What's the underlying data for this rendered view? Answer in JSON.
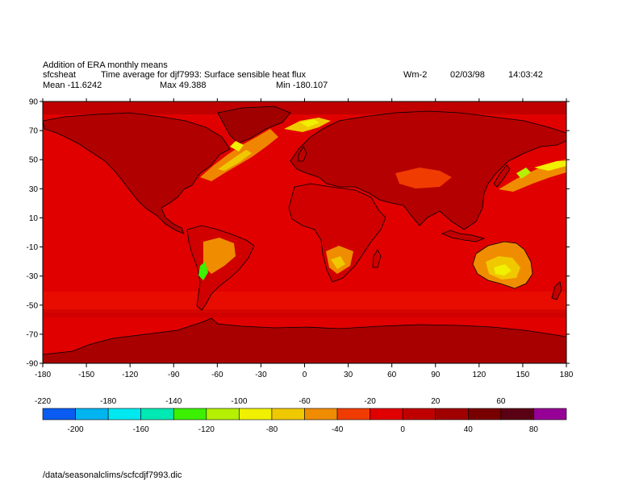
{
  "header": {
    "title": "Addition of ERA monthly means",
    "variable": "sfcsheat",
    "description": "Time average for djf7993: Surface sensible heat flux",
    "units": "Wm-2",
    "date": "02/03/98",
    "time": "14:03:42",
    "mean": "Mean -11.6242",
    "max": "Max 49.388",
    "min": "Min -180.107"
  },
  "axes": {
    "lat_ticks": [
      "90",
      "70",
      "50",
      "30",
      "10",
      "-10",
      "-30",
      "-50",
      "-70",
      "-90"
    ],
    "lon_ticks": [
      "-180",
      "-150",
      "-120",
      "-90",
      "-60",
      "-30",
      "0",
      "30",
      "60",
      "90",
      "120",
      "150",
      "180"
    ]
  },
  "colorbar": {
    "top_labels": [
      "-220",
      "-180",
      "-140",
      "-100",
      "-60",
      "-20",
      "20",
      "60"
    ],
    "bottom_labels": [
      "-200",
      "-160",
      "-120",
      "-80",
      "-40",
      "0",
      "40",
      "80"
    ],
    "colors": [
      "#0a5cf0",
      "#00b4f0",
      "#00e8f0",
      "#00e8b4",
      "#3cf000",
      "#b4f000",
      "#f0f000",
      "#f0c800",
      "#f08c00",
      "#f03c00",
      "#e00000",
      "#c00000",
      "#a00000",
      "#780000",
      "#5a0014",
      "#960096"
    ]
  },
  "footer": {
    "path": "/data/seasonalclims/scfcdjf7993.dic"
  }
}
